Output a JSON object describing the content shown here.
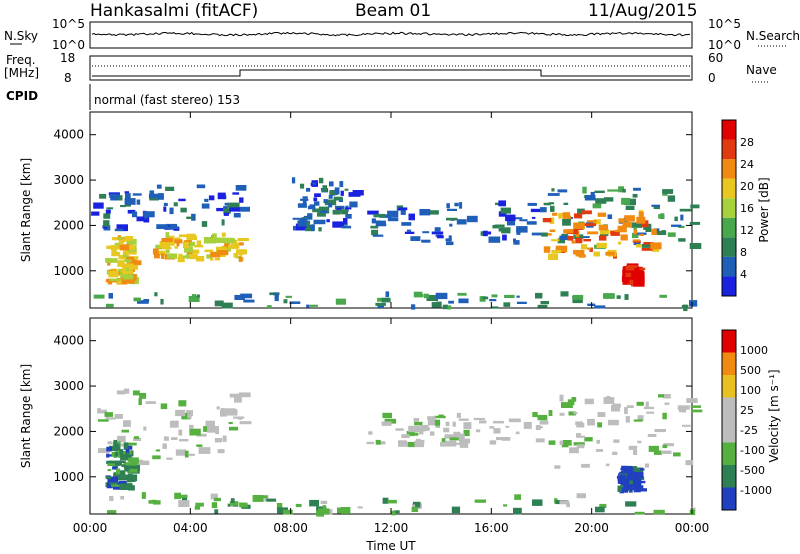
{
  "header": {
    "station": "Hankasalmi (fitACF)",
    "beam": "Beam 01",
    "date": "11/Aug/2015"
  },
  "noise_panel": {
    "left_label": "N.Sky",
    "right_label": "N.Search",
    "tick_top": "10^5",
    "tick_bottom": "10^0"
  },
  "freq_panel": {
    "left_label_1": "Freq.",
    "left_label_2": "[MHz]",
    "left_tick_top": "18",
    "left_tick_bottom": "8",
    "right_label": "Nave",
    "right_tick_top": "60",
    "right_tick_bottom": "0"
  },
  "cpid_panel": {
    "label": "CPID",
    "mode": "normal (fast stereo) 153"
  },
  "power_panel": {
    "ylabel": "Slant Range [km]",
    "colorbar_label": "Power [dB]",
    "colorbar_ticks": [
      "28",
      "24",
      "20",
      "16",
      "12",
      "8",
      "4"
    ]
  },
  "velocity_panel": {
    "ylabel": "Slant Range [km]",
    "colorbar_label": "Velocity [m s⁻¹]",
    "colorbar_ticks": [
      "1000",
      "500",
      "100",
      "25",
      "-25",
      "-100",
      "-500",
      "-1000"
    ]
  },
  "xaxis": {
    "label": "Time UT",
    "ticks": [
      "00:00",
      "04:00",
      "08:00",
      "12:00",
      "16:00",
      "20:00",
      "00:00"
    ]
  },
  "colors": {
    "power_scale": [
      "#1a22e0",
      "#1f5fb8",
      "#2f7f55",
      "#4aa84c",
      "#a6d13c",
      "#e8c820",
      "#f08a10",
      "#e23a10",
      "#e00000"
    ],
    "velocity_scale": [
      "#2040c0",
      "#2f7f55",
      "#55b040",
      "#bdbdbd",
      "#bdbdbd",
      "#e8c020",
      "#f08a10",
      "#e00000"
    ]
  },
  "chart_data": {
    "type": "heatmap",
    "x_range_hours": [
      0,
      24
    ],
    "y_range_km": [
      180,
      4500
    ],
    "y_ticks": [
      1000,
      2000,
      3000,
      4000
    ],
    "power_regions": [
      {
        "t0": 0.0,
        "t1": 6.0,
        "r0": 1900,
        "r1": 2900,
        "level": 1
      },
      {
        "t0": 2.5,
        "t1": 6.0,
        "r0": 1250,
        "r1": 1800,
        "level": 5
      },
      {
        "t0": 0.6,
        "t1": 1.6,
        "r0": 750,
        "r1": 1750,
        "level": 5
      },
      {
        "t0": 8.0,
        "t1": 10.5,
        "r0": 1900,
        "r1": 3000,
        "level": 1
      },
      {
        "t0": 11.0,
        "t1": 18.0,
        "r0": 1600,
        "r1": 2500,
        "level": 1
      },
      {
        "t0": 18.0,
        "t1": 24.0,
        "r0": 1500,
        "r1": 2800,
        "level": 2
      },
      {
        "t0": 18.0,
        "t1": 22.5,
        "r0": 1300,
        "r1": 2300,
        "level": 6
      },
      {
        "t0": 21.2,
        "t1": 21.8,
        "r0": 700,
        "r1": 1100,
        "level": 8
      },
      {
        "t0": 0.0,
        "t1": 24.0,
        "r0": 180,
        "r1": 500,
        "level": 2
      }
    ],
    "velocity_regions": [
      {
        "t0": 0.0,
        "t1": 6.0,
        "r0": 1300,
        "r1": 2900,
        "level": 3
      },
      {
        "t0": 0.6,
        "t1": 1.6,
        "r0": 750,
        "r1": 1750,
        "level": 1
      },
      {
        "t0": 11.0,
        "t1": 18.0,
        "r0": 1700,
        "r1": 2400,
        "level": 3
      },
      {
        "t0": 18.0,
        "t1": 24.0,
        "r0": 1200,
        "r1": 2800,
        "level": 3
      },
      {
        "t0": 21.0,
        "t1": 21.8,
        "r0": 700,
        "r1": 1200,
        "level": 0
      },
      {
        "t0": 0.0,
        "t1": 24.0,
        "r0": 180,
        "r1": 600,
        "level": 2
      }
    ]
  }
}
